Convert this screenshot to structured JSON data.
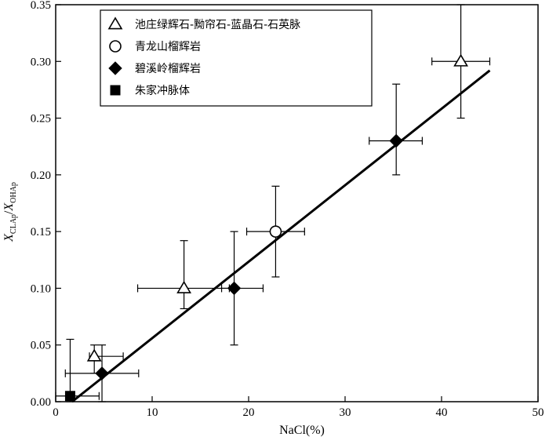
{
  "chart_data": {
    "type": "scatter",
    "xlabel": "NaCl(%)",
    "ylabel": "X_CLAp/X_OHAp",
    "ylabel_parts": {
      "main1": "X",
      "sub1": "CLAp",
      "slash": "/",
      "main2": "X",
      "sub2": "OHAp"
    },
    "xlim": [
      0,
      50
    ],
    "ylim": [
      0,
      0.35
    ],
    "xticks": [
      "0",
      "10",
      "20",
      "30",
      "40",
      "50"
    ],
    "yticks": [
      "0.00",
      "0.05",
      "0.10",
      "0.15",
      "0.20",
      "0.25",
      "0.30",
      "0.35"
    ],
    "grid": false,
    "legend_position": "top-left",
    "series": [
      {
        "name": "池庄绿辉石-黝帘石-蓝晶石-石英脉",
        "marker": "open-triangle",
        "points": [
          {
            "x": 4.0,
            "y": 0.04,
            "xerr": [
              0.5,
              3.0
            ],
            "yerr": [
              0.015,
              0.01
            ]
          },
          {
            "x": 13.3,
            "y": 0.1,
            "xerr": [
              4.8,
              4.7
            ],
            "yerr": [
              0.018,
              0.042
            ]
          },
          {
            "x": 42.0,
            "y": 0.3,
            "xerr": [
              3.0,
              3.0
            ],
            "yerr": [
              0.05,
              0.05
            ]
          }
        ]
      },
      {
        "name": "青龙山榴辉岩",
        "marker": "open-circle",
        "points": [
          {
            "x": 22.8,
            "y": 0.15,
            "xerr": [
              3.0,
              3.0
            ],
            "yerr": [
              0.04,
              0.04
            ]
          }
        ]
      },
      {
        "name": "碧溪岭榴辉岩",
        "marker": "filled-diamond",
        "points": [
          {
            "x": 4.8,
            "y": 0.025,
            "xerr": [
              3.8,
              3.8
            ],
            "yerr": [
              0.025,
              0.025
            ]
          },
          {
            "x": 18.5,
            "y": 0.1,
            "xerr": [
              1.3,
              3.0
            ],
            "yerr": [
              0.05,
              0.05
            ]
          },
          {
            "x": 35.3,
            "y": 0.23,
            "xerr": [
              2.8,
              2.7
            ],
            "yerr": [
              0.03,
              0.05
            ]
          }
        ]
      },
      {
        "name": "朱家冲脉体",
        "marker": "filled-square",
        "points": [
          {
            "x": 1.5,
            "y": 0.005,
            "xerr": [
              1.5,
              3.0
            ],
            "yerr": [
              0.005,
              0.05
            ]
          }
        ]
      }
    ],
    "fit_line": {
      "x": [
        1.7,
        45.0
      ],
      "y": [
        0.0,
        0.292
      ]
    }
  }
}
